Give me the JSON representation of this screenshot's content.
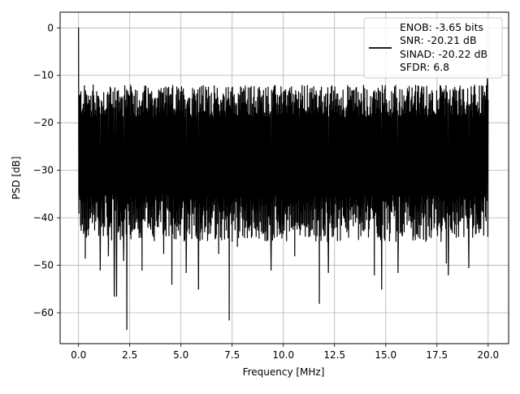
{
  "chart_data": {
    "type": "line",
    "title": "",
    "xlabel": "Frequency [MHz]",
    "ylabel": "PSD [dB]",
    "xlim": [
      -0.9,
      21.0
    ],
    "ylim": [
      -66.5,
      3.3
    ],
    "grid": true,
    "legend_position": "top-right",
    "x_ticks": [
      0.0,
      2.5,
      5.0,
      7.5,
      10.0,
      12.5,
      15.0,
      17.5,
      20.0
    ],
    "x_tick_labels": [
      "0.0",
      "2.5",
      "5.0",
      "7.5",
      "10.0",
      "12.5",
      "15.0",
      "17.5",
      "20.0"
    ],
    "y_ticks": [
      0,
      -10,
      -20,
      -30,
      -40,
      -50,
      -60
    ],
    "y_tick_labels": [
      "0",
      "−10",
      "−20",
      "−30",
      "−40",
      "−50",
      "−60"
    ],
    "series": [
      {
        "color": "#000000",
        "notes": "Noise-like PSD spanning 0 to 20 MHz; upper envelope mostly about -14 to -19 dB, lower envelope mostly about -35 to -45 dB; peak of 0 dB at 0 MHz.",
        "noise_band": {
          "upper_dB": [
            -19,
            -12
          ],
          "lower_dB": [
            -45,
            -35
          ]
        },
        "spikes": [
          {
            "x": 0.0,
            "y": 0.0
          },
          {
            "x": 0.02,
            "y": -39.0
          },
          {
            "x": 0.33,
            "y": -48.5
          },
          {
            "x": 1.05,
            "y": -51.0
          },
          {
            "x": 1.45,
            "y": -48.0
          },
          {
            "x": 1.75,
            "y": -56.5
          },
          {
            "x": 1.85,
            "y": -56.5
          },
          {
            "x": 2.2,
            "y": -49.0
          },
          {
            "x": 2.35,
            "y": -63.5
          },
          {
            "x": 3.1,
            "y": -51.0
          },
          {
            "x": 4.15,
            "y": -47.5
          },
          {
            "x": 4.55,
            "y": -54.0
          },
          {
            "x": 5.25,
            "y": -51.5
          },
          {
            "x": 5.85,
            "y": -55.0
          },
          {
            "x": 6.85,
            "y": -47.5
          },
          {
            "x": 7.35,
            "y": -61.5
          },
          {
            "x": 7.75,
            "y": -46.0
          },
          {
            "x": 9.4,
            "y": -51.0
          },
          {
            "x": 10.55,
            "y": -48.0
          },
          {
            "x": 11.75,
            "y": -58.0
          },
          {
            "x": 12.2,
            "y": -51.5
          },
          {
            "x": 14.45,
            "y": -52.0
          },
          {
            "x": 14.8,
            "y": -55.0
          },
          {
            "x": 15.6,
            "y": -51.5
          },
          {
            "x": 17.95,
            "y": -49.5
          },
          {
            "x": 18.05,
            "y": -52.0
          },
          {
            "x": 19.05,
            "y": -50.5
          },
          {
            "x": 19.95,
            "y": -10.5
          }
        ]
      }
    ],
    "legend_lines": [
      "ENOB: -3.65 bits",
      "SNR: -20.21 dB",
      "SINAD: -20.22 dB",
      "SFDR: 6.8"
    ]
  }
}
